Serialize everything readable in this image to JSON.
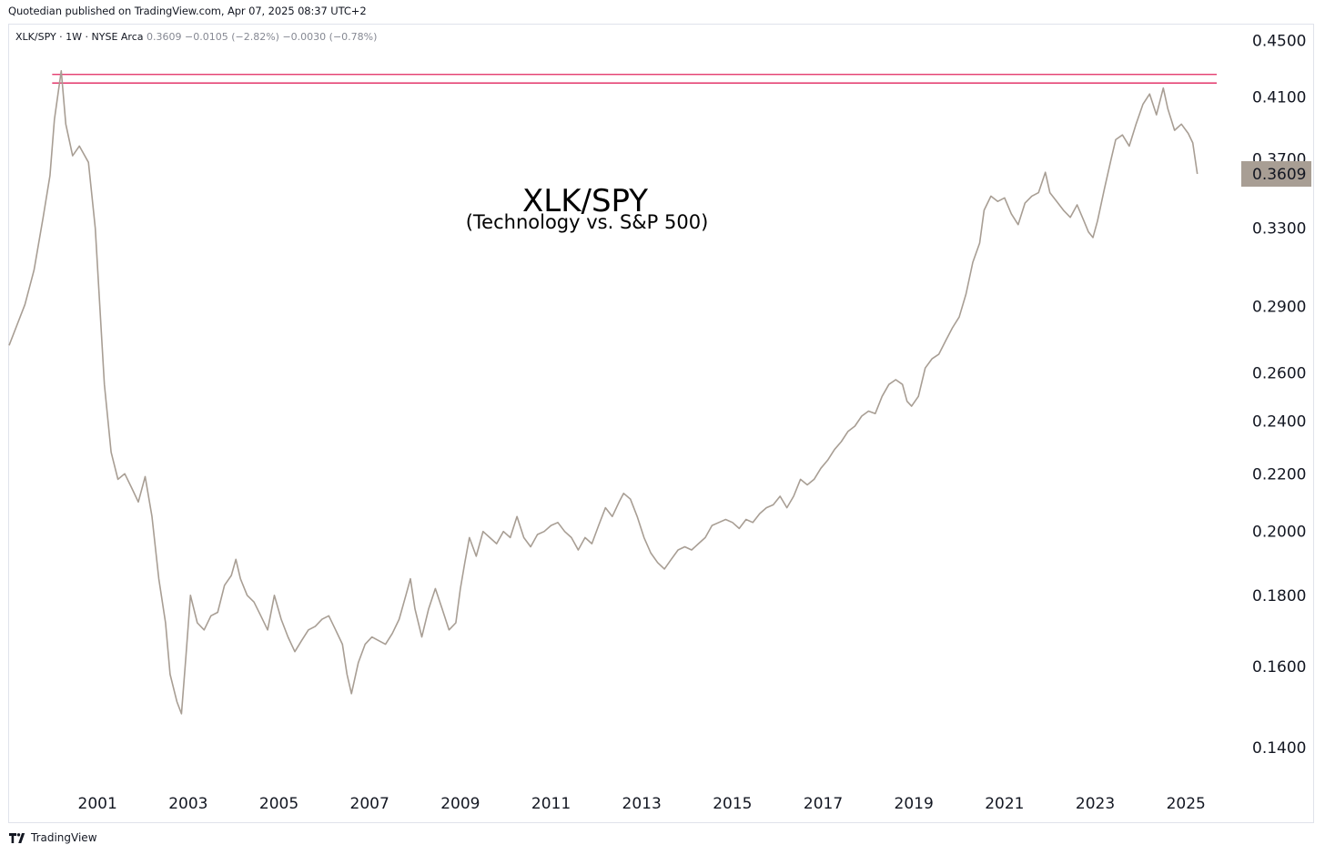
{
  "header": {
    "publisher_line": "Quotedian published on TradingView.com, Apr 07, 2025 08:37 UTC+2"
  },
  "legend": {
    "symbol": "XLK/SPY · 1W · NYSE Arca",
    "last": "0.3609",
    "change": "−0.0105 (−2.82%)",
    "change2": "−0.0030 (−0.78%)"
  },
  "footer": {
    "brand": "TradingView"
  },
  "colors": {
    "series": "#a89e94",
    "resistance": "#e0245e",
    "price_badge": "#a89e94",
    "text": "#131722"
  },
  "chart_data": {
    "type": "line",
    "title": "XLK/SPY",
    "subtitle": "(Technology vs. S&P 500)",
    "xlabel": "",
    "ylabel": "",
    "y_scale": "log",
    "ylim": [
      0.132,
      0.462
    ],
    "xlim": [
      1999.05,
      2026.2
    ],
    "grid": false,
    "x_ticks": [
      "2001",
      "2003",
      "2005",
      "2007",
      "2009",
      "2011",
      "2013",
      "2015",
      "2017",
      "2019",
      "2021",
      "2023",
      "2025"
    ],
    "y_ticks": [
      "0.4500",
      "0.4100",
      "0.3700",
      "0.3300",
      "0.2900",
      "0.2600",
      "0.2400",
      "0.2200",
      "0.2000",
      "0.1800",
      "0.1600",
      "0.1400"
    ],
    "last_value_label": "0.3609",
    "horizontal_lines": [
      {
        "y": 0.4255,
        "x_start": 2000.0
      },
      {
        "y": 0.4195,
        "x_start": 2000.0
      }
    ],
    "series": [
      {
        "values": [
          [
            1999.05,
            0.272
          ],
          [
            1999.2,
            0.28
          ],
          [
            1999.4,
            0.291
          ],
          [
            1999.6,
            0.308
          ],
          [
            1999.8,
            0.336
          ],
          [
            1999.95,
            0.36
          ],
          [
            2000.05,
            0.395
          ],
          [
            2000.2,
            0.428
          ],
          [
            2000.3,
            0.392
          ],
          [
            2000.45,
            0.372
          ],
          [
            2000.6,
            0.378
          ],
          [
            2000.8,
            0.368
          ],
          [
            2000.95,
            0.33
          ],
          [
            2001.05,
            0.29
          ],
          [
            2001.15,
            0.255
          ],
          [
            2001.3,
            0.228
          ],
          [
            2001.45,
            0.218
          ],
          [
            2001.6,
            0.22
          ],
          [
            2001.75,
            0.215
          ],
          [
            2001.9,
            0.21
          ],
          [
            2002.05,
            0.219
          ],
          [
            2002.2,
            0.205
          ],
          [
            2002.35,
            0.185
          ],
          [
            2002.5,
            0.172
          ],
          [
            2002.6,
            0.158
          ],
          [
            2002.75,
            0.151
          ],
          [
            2002.85,
            0.148
          ],
          [
            2002.95,
            0.163
          ],
          [
            2003.05,
            0.18
          ],
          [
            2003.2,
            0.172
          ],
          [
            2003.35,
            0.17
          ],
          [
            2003.5,
            0.174
          ],
          [
            2003.65,
            0.175
          ],
          [
            2003.8,
            0.183
          ],
          [
            2003.95,
            0.186
          ],
          [
            2004.05,
            0.191
          ],
          [
            2004.15,
            0.185
          ],
          [
            2004.3,
            0.18
          ],
          [
            2004.45,
            0.178
          ],
          [
            2004.6,
            0.174
          ],
          [
            2004.75,
            0.17
          ],
          [
            2004.9,
            0.18
          ],
          [
            2005.05,
            0.173
          ],
          [
            2005.2,
            0.168
          ],
          [
            2005.35,
            0.164
          ],
          [
            2005.5,
            0.167
          ],
          [
            2005.65,
            0.17
          ],
          [
            2005.8,
            0.171
          ],
          [
            2005.95,
            0.173
          ],
          [
            2006.1,
            0.174
          ],
          [
            2006.25,
            0.17
          ],
          [
            2006.4,
            0.166
          ],
          [
            2006.5,
            0.158
          ],
          [
            2006.6,
            0.153
          ],
          [
            2006.75,
            0.161
          ],
          [
            2006.9,
            0.166
          ],
          [
            2007.05,
            0.168
          ],
          [
            2007.2,
            0.167
          ],
          [
            2007.35,
            0.166
          ],
          [
            2007.5,
            0.169
          ],
          [
            2007.65,
            0.173
          ],
          [
            2007.8,
            0.18
          ],
          [
            2007.9,
            0.185
          ],
          [
            2008.0,
            0.176
          ],
          [
            2008.15,
            0.168
          ],
          [
            2008.3,
            0.176
          ],
          [
            2008.45,
            0.182
          ],
          [
            2008.6,
            0.176
          ],
          [
            2008.75,
            0.17
          ],
          [
            2008.9,
            0.172
          ],
          [
            2009.0,
            0.182
          ],
          [
            2009.1,
            0.19
          ],
          [
            2009.2,
            0.198
          ],
          [
            2009.35,
            0.192
          ],
          [
            2009.5,
            0.2
          ],
          [
            2009.65,
            0.198
          ],
          [
            2009.8,
            0.196
          ],
          [
            2009.95,
            0.2
          ],
          [
            2010.1,
            0.198
          ],
          [
            2010.25,
            0.205
          ],
          [
            2010.4,
            0.198
          ],
          [
            2010.55,
            0.195
          ],
          [
            2010.7,
            0.199
          ],
          [
            2010.85,
            0.2
          ],
          [
            2011.0,
            0.202
          ],
          [
            2011.15,
            0.203
          ],
          [
            2011.3,
            0.2
          ],
          [
            2011.45,
            0.198
          ],
          [
            2011.6,
            0.194
          ],
          [
            2011.75,
            0.198
          ],
          [
            2011.9,
            0.196
          ],
          [
            2012.05,
            0.202
          ],
          [
            2012.2,
            0.208
          ],
          [
            2012.35,
            0.205
          ],
          [
            2012.5,
            0.21
          ],
          [
            2012.6,
            0.213
          ],
          [
            2012.75,
            0.211
          ],
          [
            2012.9,
            0.205
          ],
          [
            2013.05,
            0.198
          ],
          [
            2013.2,
            0.193
          ],
          [
            2013.35,
            0.19
          ],
          [
            2013.5,
            0.188
          ],
          [
            2013.65,
            0.191
          ],
          [
            2013.8,
            0.194
          ],
          [
            2013.95,
            0.195
          ],
          [
            2014.1,
            0.194
          ],
          [
            2014.25,
            0.196
          ],
          [
            2014.4,
            0.198
          ],
          [
            2014.55,
            0.202
          ],
          [
            2014.7,
            0.203
          ],
          [
            2014.85,
            0.204
          ],
          [
            2015.0,
            0.203
          ],
          [
            2015.15,
            0.201
          ],
          [
            2015.3,
            0.204
          ],
          [
            2015.45,
            0.203
          ],
          [
            2015.6,
            0.206
          ],
          [
            2015.75,
            0.208
          ],
          [
            2015.9,
            0.209
          ],
          [
            2016.05,
            0.212
          ],
          [
            2016.2,
            0.208
          ],
          [
            2016.35,
            0.212
          ],
          [
            2016.5,
            0.218
          ],
          [
            2016.65,
            0.216
          ],
          [
            2016.8,
            0.218
          ],
          [
            2016.95,
            0.222
          ],
          [
            2017.1,
            0.225
          ],
          [
            2017.25,
            0.229
          ],
          [
            2017.4,
            0.232
          ],
          [
            2017.55,
            0.236
          ],
          [
            2017.7,
            0.238
          ],
          [
            2017.85,
            0.242
          ],
          [
            2018.0,
            0.244
          ],
          [
            2018.15,
            0.243
          ],
          [
            2018.3,
            0.25
          ],
          [
            2018.45,
            0.255
          ],
          [
            2018.6,
            0.257
          ],
          [
            2018.75,
            0.255
          ],
          [
            2018.85,
            0.248
          ],
          [
            2018.95,
            0.246
          ],
          [
            2019.1,
            0.25
          ],
          [
            2019.25,
            0.262
          ],
          [
            2019.4,
            0.266
          ],
          [
            2019.55,
            0.268
          ],
          [
            2019.7,
            0.274
          ],
          [
            2019.85,
            0.28
          ],
          [
            2020.0,
            0.285
          ],
          [
            2020.15,
            0.296
          ],
          [
            2020.3,
            0.312
          ],
          [
            2020.45,
            0.322
          ],
          [
            2020.55,
            0.34
          ],
          [
            2020.7,
            0.348
          ],
          [
            2020.85,
            0.345
          ],
          [
            2021.0,
            0.347
          ],
          [
            2021.15,
            0.338
          ],
          [
            2021.3,
            0.332
          ],
          [
            2021.45,
            0.344
          ],
          [
            2021.6,
            0.348
          ],
          [
            2021.75,
            0.35
          ],
          [
            2021.9,
            0.362
          ],
          [
            2022.0,
            0.35
          ],
          [
            2022.15,
            0.345
          ],
          [
            2022.3,
            0.34
          ],
          [
            2022.45,
            0.336
          ],
          [
            2022.6,
            0.343
          ],
          [
            2022.75,
            0.334
          ],
          [
            2022.85,
            0.328
          ],
          [
            2022.95,
            0.325
          ],
          [
            2023.05,
            0.334
          ],
          [
            2023.2,
            0.352
          ],
          [
            2023.35,
            0.37
          ],
          [
            2023.45,
            0.382
          ],
          [
            2023.6,
            0.385
          ],
          [
            2023.75,
            0.378
          ],
          [
            2023.9,
            0.392
          ],
          [
            2024.05,
            0.405
          ],
          [
            2024.2,
            0.412
          ],
          [
            2024.35,
            0.398
          ],
          [
            2024.5,
            0.416
          ],
          [
            2024.6,
            0.402
          ],
          [
            2024.75,
            0.388
          ],
          [
            2024.9,
            0.392
          ],
          [
            2025.05,
            0.386
          ],
          [
            2025.15,
            0.38
          ],
          [
            2025.25,
            0.361
          ]
        ]
      }
    ]
  }
}
